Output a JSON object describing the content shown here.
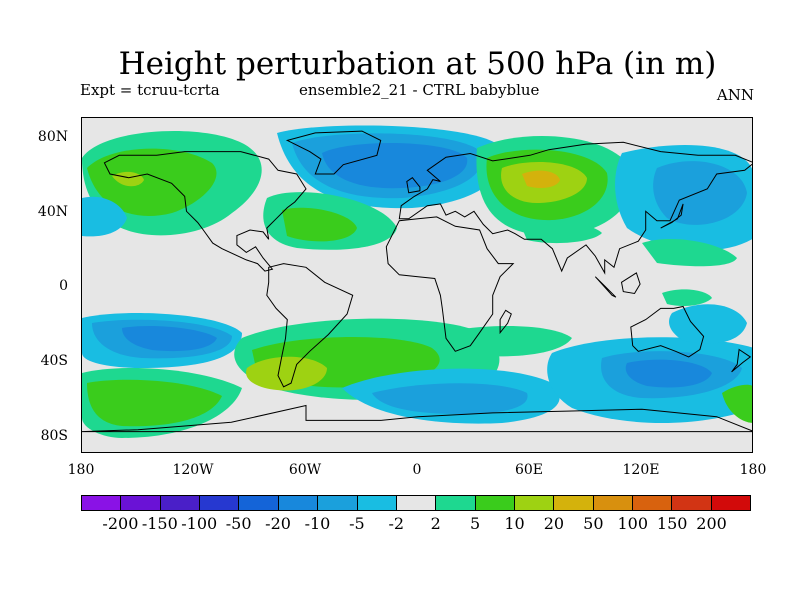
{
  "title": "Height perturbation at 500 hPa (in m)",
  "subtitle_left": "Expt = tcruu-tcrta",
  "subtitle_mid": "ensemble2_21 - CTRL babyblue",
  "subtitle_right": "ANN",
  "lat_labels": [
    "80N",
    "40N",
    "0",
    "40S",
    "80S"
  ],
  "lon_labels": [
    "180",
    "120W",
    "60W",
    "0",
    "60E",
    "120E",
    "180"
  ],
  "colorbar": {
    "colors": [
      "#8a12e6",
      "#6a12d6",
      "#4a1fc8",
      "#2638d0",
      "#1464d8",
      "#1888dc",
      "#1ba0dc",
      "#19bde2",
      "#e6e6e6",
      "#1ed890",
      "#3acc1c",
      "#9ed212",
      "#d4b20c",
      "#d8900e",
      "#d8620e",
      "#d23414",
      "#d20a0a"
    ],
    "labels": [
      "-200",
      "-150",
      "-100",
      "-50",
      "-20",
      "-10",
      "-5",
      "-2",
      "2",
      "5",
      "10",
      "20",
      "50",
      "100",
      "150",
      "200"
    ]
  },
  "palette": {
    "neg2": "#19bde2",
    "neg5": "#1ba0dc",
    "neg10": "#1888dc",
    "pos2": "#1ed890",
    "pos5": "#3acc1c",
    "pos10": "#9ed212",
    "pos20": "#d4b20c",
    "land_line": "#000000",
    "background": "#e6e6e6"
  }
}
